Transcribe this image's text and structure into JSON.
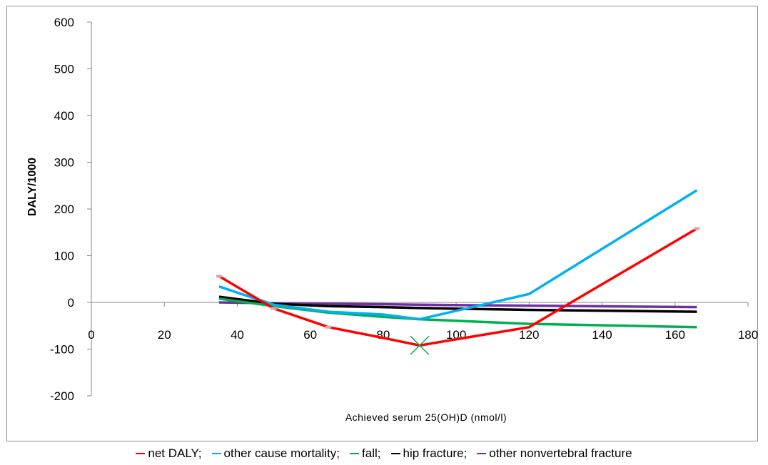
{
  "chart_data": {
    "type": "line",
    "title": "",
    "xlabel": "Achieved serum 25(OH)D (nmol/l)",
    "ylabel": "DALY/1000",
    "xlim": [
      0,
      180
    ],
    "ylim": [
      -200,
      600
    ],
    "x_ticks": [
      "0",
      "20",
      "40",
      "60",
      "80",
      "100",
      "120",
      "140",
      "160",
      "180"
    ],
    "y_ticks": [
      "600",
      "500",
      "400",
      "300",
      "200",
      "100",
      "0",
      "-100",
      "-200"
    ],
    "grid": false,
    "legend_position": "bottom",
    "series": [
      {
        "key": "other_nonvertebral",
        "name": "other nonvertebral fracture",
        "color": "#7030a0",
        "x": [
          35,
          50,
          65,
          80,
          90,
          120,
          166
        ],
        "y": [
          0,
          -2,
          -3,
          -4,
          -5,
          -7,
          -10
        ]
      },
      {
        "key": "hip",
        "name": "hip fracture",
        "color": "#000000",
        "x": [
          35,
          50,
          65,
          80,
          90,
          120,
          166
        ],
        "y": [
          12,
          -3,
          -8,
          -10,
          -12,
          -16,
          -20
        ]
      },
      {
        "key": "fall",
        "name": "fall",
        "color": "#00b050",
        "x": [
          35,
          50,
          65,
          80,
          90,
          120,
          166
        ],
        "y": [
          8,
          -8,
          -22,
          -31,
          -36,
          -46,
          -53
        ]
      },
      {
        "key": "other_cause",
        "name": "other cause mortality",
        "color": "#00b0f0",
        "x": [
          35,
          50,
          65,
          80,
          90,
          120,
          166
        ],
        "y": [
          34,
          -5,
          -20,
          -26,
          -36,
          18,
          240
        ]
      },
      {
        "key": "net",
        "name": "net DALY",
        "color": "#ff0000",
        "x": [
          35,
          50,
          65,
          80,
          90,
          120,
          166
        ],
        "y": [
          56,
          -13,
          -53,
          -76,
          -92,
          -53,
          158
        ]
      }
    ],
    "annotations": [
      {
        "type": "x-marker",
        "x": 90,
        "y": -92,
        "color": "#00b050"
      }
    ]
  },
  "legend": [
    {
      "label": "net DALY;",
      "color": "#ff0000"
    },
    {
      "label": "other cause mortality;",
      "color": "#00b0f0"
    },
    {
      "label": "fall;",
      "color": "#00b050"
    },
    {
      "label": "hip fracture;",
      "color": "#000000"
    },
    {
      "label": "other nonvertebral fracture",
      "color": "#7030a0"
    }
  ]
}
